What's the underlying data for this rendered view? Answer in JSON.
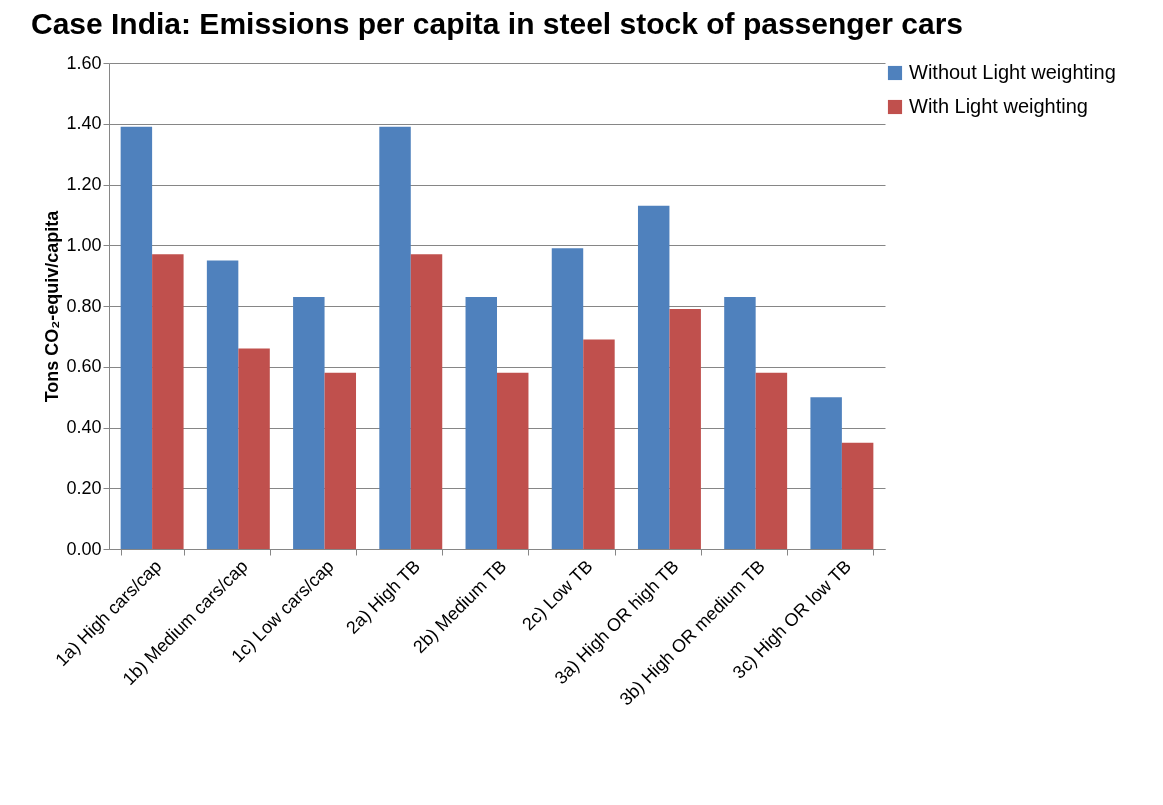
{
  "chart_data": {
    "type": "bar",
    "title": "Case India: Emissions per capita in steel stock of passenger cars",
    "ylabel": "Tons CO₂-equiv/capita",
    "categories": [
      "1a) High cars/cap",
      "1b) Medium cars/cap",
      "1c) Low cars/cap",
      "2a) High TB",
      "2b) Medium TB",
      "2c) Low TB",
      "3a) High OR high TB",
      "3b) High OR medium TB",
      "3c) High OR low TB"
    ],
    "series": [
      {
        "name": "Without Light weighting",
        "color": "#4f81bd",
        "values": [
          1.39,
          0.95,
          0.83,
          1.39,
          0.83,
          0.99,
          1.13,
          0.83,
          0.5
        ]
      },
      {
        "name": "With Light weighting",
        "color": "#c0504d",
        "values": [
          0.97,
          0.66,
          0.58,
          0.97,
          0.58,
          0.69,
          0.79,
          0.58,
          0.35
        ]
      }
    ],
    "ylim": [
      0,
      1.6
    ],
    "yticks": [
      {
        "value": 0,
        "label": "0.00"
      },
      {
        "value": 0.2,
        "label": "0.20"
      },
      {
        "value": 0.4,
        "label": "0.40"
      },
      {
        "value": 0.6,
        "label": "0.60"
      },
      {
        "value": 0.8,
        "label": "0.80"
      },
      {
        "value": 1.0,
        "label": "1.00"
      },
      {
        "value": 1.2,
        "label": "1.20"
      },
      {
        "value": 1.4,
        "label": "1.40"
      },
      {
        "value": 1.6,
        "label": "1.60"
      }
    ],
    "grid": "y",
    "legend": "right"
  }
}
